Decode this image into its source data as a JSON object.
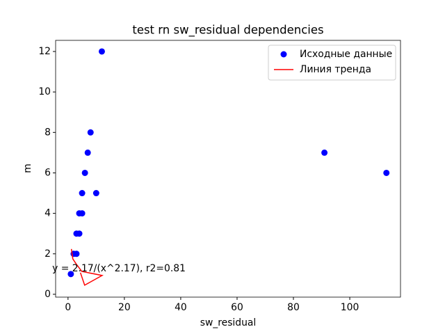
{
  "chart_data": {
    "type": "scatter",
    "title": "test rn sw_residual dependencies",
    "xlabel": "sw_residual",
    "ylabel": "m",
    "xlim": [
      -4.4,
      118
    ],
    "ylim": [
      -0.14,
      12.55
    ],
    "xticks": [
      0,
      20,
      40,
      60,
      80,
      100
    ],
    "yticks": [
      0,
      2,
      4,
      6,
      8,
      10,
      12
    ],
    "legend": "upper right",
    "annotation": "y = 2.17/(x^2.17),  r2=0.81",
    "series": [
      {
        "name": "Исходные данные",
        "color": "#0000ff",
        "mode": "markers",
        "x": [
          1,
          2,
          3,
          3,
          4,
          4,
          5,
          5,
          6,
          7,
          8,
          10,
          12,
          91,
          113
        ],
        "values": [
          1,
          2,
          2,
          3,
          3,
          4,
          4,
          5,
          6,
          7,
          8,
          5,
          12,
          7,
          6
        ]
      },
      {
        "name": "Линия тренда",
        "color": "#ff0000",
        "mode": "line",
        "x": [
          1.2,
          1.7,
          3.0,
          4.9,
          12.1,
          5.9,
          4.4
        ],
        "values": [
          2.24,
          1.75,
          1.48,
          1.13,
          0.93,
          0.45,
          1.07
        ]
      }
    ]
  }
}
